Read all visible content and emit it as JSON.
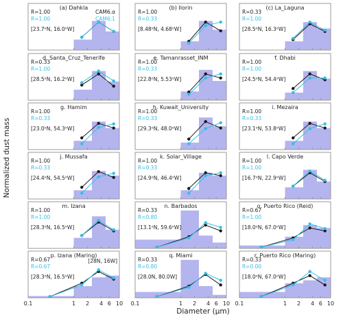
{
  "figure": {
    "ylabel": "Normalized dust mass",
    "xlabel": "Diameter (μm)",
    "x_ticks": [
      "0.1",
      "1",
      "2",
      "4",
      "6",
      "10"
    ],
    "legend": [
      {
        "name": "CAM6.α",
        "color": "#1a1a1a"
      },
      {
        "name": "CAM6.1",
        "color": "#33bfe6"
      }
    ]
  },
  "colors": {
    "bar": "#b4b4ee",
    "cam6_alpha": "#1a1a1a",
    "cam6_1": "#33bfe6",
    "axis": "#999999"
  },
  "chart_data": [
    {
      "type": "bar",
      "title": "(a) Dahkla",
      "r_alpha": "R=1.00",
      "r_61": "R=1.00",
      "location": "[23.7ᵒN, 16.0ᵒW]",
      "bin_edges": [
        0.1,
        1,
        2.5,
        5,
        10
      ],
      "bars": [
        0,
        0.18,
        0.5,
        0.32
      ],
      "alpha": [
        0.22,
        0.48,
        0.32
      ],
      "cam61": [
        0.22,
        0.48,
        0.32
      ],
      "x_pts": [
        1.5,
        3.5,
        7.5
      ],
      "ylim": [
        0,
        0.8
      ],
      "x_scale": "log",
      "xlim": [
        0.1,
        10
      ]
    },
    {
      "type": "bar",
      "title": "(b) Ilorin",
      "r_alpha": "R=1.00",
      "r_61": "R=0.33",
      "location": "[8.48ᵒN, 4.68ᵒW]",
      "bin_edges": [
        0.1,
        1,
        2.5,
        5,
        10
      ],
      "bars": [
        0,
        0.15,
        0.5,
        0.35
      ],
      "alpha": [
        0.15,
        0.48,
        0.33
      ],
      "cam61": [
        0.12,
        0.42,
        0.48
      ],
      "x_pts": [
        1.5,
        3.5,
        7.5
      ],
      "ylim": [
        0,
        0.8
      ],
      "x_scale": "log",
      "xlim": [
        0.1,
        10
      ]
    },
    {
      "type": "bar",
      "title": "(c) La_Laguna",
      "r_alpha": "R=0.33",
      "r_61": "R=1.00",
      "location": "[28.5ᵒN, 16.3ᵒW]",
      "bin_edges": [
        0.1,
        1,
        2.5,
        5,
        10
      ],
      "bars": [
        0,
        0.15,
        0.48,
        0.37
      ],
      "alpha": [
        0.18,
        0.45,
        0.32
      ],
      "cam61": [
        0.2,
        0.48,
        0.34
      ],
      "x_pts": [
        1.5,
        3.5,
        7.5
      ],
      "ylim": [
        0,
        0.8
      ],
      "x_scale": "log",
      "xlim": [
        0.1,
        10
      ]
    },
    {
      "type": "bar",
      "title": "d. Santa_Cruz_Tenerife",
      "r_alpha": "R=0.33",
      "r_61": "R=1.00",
      "location": "[28.5ᵒN, 16.2ᵒW]",
      "bin_edges": [
        0.1,
        1,
        2.5,
        5,
        10
      ],
      "bars": [
        0,
        0.18,
        0.5,
        0.32
      ],
      "alpha": [
        0.26,
        0.45,
        0.24
      ],
      "cam61": [
        0.3,
        0.5,
        0.33
      ],
      "x_pts": [
        1.5,
        3.5,
        7.5
      ],
      "ylim": [
        0,
        0.8
      ],
      "x_scale": "log",
      "xlim": [
        0.1,
        10
      ]
    },
    {
      "type": "bar",
      "title": "e. Tamanrasset_INM",
      "r_alpha": "R=1.00",
      "r_61": "R=0.33",
      "location": "[22.8ᵒN, 5.53ᵒW]",
      "bin_edges": [
        0.1,
        1,
        2.5,
        5,
        10
      ],
      "bars": [
        0,
        0.15,
        0.52,
        0.33
      ],
      "alpha": [
        0.14,
        0.45,
        0.38
      ],
      "cam61": [
        0.1,
        0.38,
        0.45
      ],
      "x_pts": [
        1.5,
        3.5,
        7.5
      ],
      "ylim": [
        0,
        0.8
      ],
      "x_scale": "log",
      "xlim": [
        0.1,
        10
      ]
    },
    {
      "type": "bar",
      "title": "f. Dhabi",
      "r_alpha": "R=1.00",
      "r_61": "R=1.00",
      "location": "[24.5ᵒN, 54.4ᵒW]",
      "bin_edges": [
        0.1,
        1,
        2.5,
        5,
        10
      ],
      "bars": [
        0,
        0.13,
        0.5,
        0.37
      ],
      "alpha": [
        0.2,
        0.45,
        0.35
      ],
      "cam61": [
        0.13,
        0.38,
        0.38
      ],
      "x_pts": [
        1.5,
        3.5,
        7.5
      ],
      "ylim": [
        0,
        0.8
      ],
      "x_scale": "log",
      "xlim": [
        0.1,
        10
      ]
    },
    {
      "type": "bar",
      "title": "g. Hamim",
      "r_alpha": "R=1.00",
      "r_61": "R=0.33",
      "location": "[23.0ᵒN, 54.3ᵒW]",
      "bin_edges": [
        0.1,
        1,
        2.5,
        5,
        10
      ],
      "bars": [
        0,
        0.15,
        0.48,
        0.37
      ],
      "alpha": [
        0.2,
        0.45,
        0.37
      ],
      "cam61": [
        0.1,
        0.38,
        0.44
      ],
      "x_pts": [
        1.5,
        3.5,
        7.5
      ],
      "ylim": [
        0,
        0.8
      ],
      "x_scale": "log",
      "xlim": [
        0.1,
        10
      ]
    },
    {
      "type": "bar",
      "title": "h. Kuwait_University",
      "r_alpha": "R=1.00",
      "r_61": "R=0.33",
      "location": "[29.3ᵒN, 48.0ᵒW]",
      "bin_edges": [
        0.1,
        1,
        2.5,
        5,
        10
      ],
      "bars": [
        0,
        0.12,
        0.55,
        0.4
      ],
      "alpha": [
        0.18,
        0.48,
        0.37
      ],
      "cam61": [
        0.1,
        0.36,
        0.46
      ],
      "x_pts": [
        1.5,
        3.5,
        7.5
      ],
      "ylim": [
        0,
        0.8
      ],
      "x_scale": "log",
      "xlim": [
        0.1,
        10
      ]
    },
    {
      "type": "bar",
      "title": "i. Mezaira",
      "r_alpha": "R=1.00",
      "r_61": "R=0.33",
      "location": "[23.1ᵒN, 53.8ᵒW]",
      "bin_edges": [
        0.1,
        1,
        2.5,
        5,
        10
      ],
      "bars": [
        0,
        0.15,
        0.48,
        0.37
      ],
      "alpha": [
        0.2,
        0.45,
        0.37
      ],
      "cam61": [
        0.1,
        0.36,
        0.44
      ],
      "x_pts": [
        1.5,
        3.5,
        7.5
      ],
      "ylim": [
        0,
        0.8
      ],
      "x_scale": "log",
      "xlim": [
        0.1,
        10
      ]
    },
    {
      "type": "bar",
      "title": "j. Mussafa",
      "r_alpha": "R=1.00",
      "r_61": "R=0.33",
      "location": "[24.4ᵒN, 54.5ᵒW]",
      "bin_edges": [
        0.1,
        1,
        2.5,
        5,
        10
      ],
      "bars": [
        0,
        0.15,
        0.48,
        0.4
      ],
      "alpha": [
        0.2,
        0.47,
        0.37
      ],
      "cam61": [
        0.1,
        0.38,
        0.44
      ],
      "x_pts": [
        1.5,
        3.5,
        7.5
      ],
      "ylim": [
        0,
        0.8
      ],
      "x_scale": "log",
      "xlim": [
        0.1,
        10
      ]
    },
    {
      "type": "bar",
      "title": "k. Solar_Village",
      "r_alpha": "R=1.00",
      "r_61": "R=0.33",
      "location": "[24.9ᵒN, 46.4ᵒW]",
      "bin_edges": [
        0.1,
        1,
        2.5,
        5,
        10
      ],
      "bars": [
        0,
        0.15,
        0.45,
        0.4
      ],
      "alpha": [
        0.18,
        0.45,
        0.4
      ],
      "cam61": [
        0.1,
        0.4,
        0.45
      ],
      "x_pts": [
        1.5,
        3.5,
        7.5
      ],
      "ylim": [
        0,
        0.8
      ],
      "x_scale": "log",
      "xlim": [
        0.1,
        10
      ]
    },
    {
      "type": "bar",
      "title": "l. Capo Verde",
      "r_alpha": "R=1.00",
      "r_61": "R=1.00",
      "location": "[16.7ᵒN, 22.9ᵒW]",
      "bin_edges": [
        0.1,
        1,
        2.5,
        5,
        10
      ],
      "bars": [
        0,
        0.2,
        0.5,
        0.3
      ],
      "alpha": [
        0.22,
        0.45,
        0.3
      ],
      "cam61": [
        0.22,
        0.48,
        0.32
      ],
      "x_pts": [
        1.5,
        3.5,
        7.5
      ],
      "ylim": [
        0,
        0.8
      ],
      "x_scale": "log",
      "xlim": [
        0.1,
        10
      ]
    },
    {
      "type": "bar",
      "title": "m. Izana",
      "r_alpha": "R=1.00",
      "r_61": "R=1.00",
      "location": "[28.3ᵒN, 16.5ᵒW]",
      "bin_edges": [
        0.1,
        1,
        2.5,
        5,
        10
      ],
      "bars": [
        0,
        0.18,
        0.55,
        0.32
      ],
      "alpha": [
        0.22,
        0.45,
        0.3
      ],
      "cam61": [
        0.22,
        0.48,
        0.32
      ],
      "x_pts": [
        1.5,
        3.5,
        7.5
      ],
      "ylim": [
        0,
        0.8
      ],
      "x_scale": "log",
      "xlim": [
        0.1,
        10
      ]
    },
    {
      "type": "bar",
      "title": "n. Barbados",
      "r_alpha": "R=0.33",
      "r_61": "R=0.80",
      "location": "[13.1ᵒN, 59.6ᵒW]",
      "bin_edges": [
        0.1,
        1,
        2.5,
        5,
        10
      ],
      "bars": [
        0.15,
        0.65,
        0.22,
        0.1
      ],
      "alpha": [
        0.02,
        0.2,
        0.4,
        0.3
      ],
      "cam61": [
        0.02,
        0.18,
        0.44,
        0.36
      ],
      "x_pts": [
        0.3,
        1.5,
        3.5,
        7.5
      ],
      "ylim": [
        0,
        0.8
      ],
      "x_scale": "log",
      "xlim": [
        0.1,
        10
      ]
    },
    {
      "type": "bar",
      "title": "o. Puerto Rico (Reid)",
      "r_alpha": "R=0.67",
      "r_61": "R=1.00",
      "location": "[18.0ᵒN, 67.0ᵒW]",
      "bin_edges": [
        0.1,
        1,
        2.5,
        5,
        10
      ],
      "bars": [
        0.05,
        0.2,
        0.4,
        0.35
      ],
      "alpha": [
        0.02,
        0.18,
        0.35,
        0.3
      ],
      "cam61": [
        0.02,
        0.15,
        0.42,
        0.34
      ],
      "x_pts": [
        0.3,
        1.5,
        3.5,
        7.5
      ],
      "ylim": [
        0,
        0.8
      ],
      "x_scale": "log",
      "xlim": [
        0.1,
        10
      ]
    },
    {
      "type": "bar",
      "title": "p. Izana (Maring)",
      "r_alpha": "R=0.67",
      "r_61": "R=0.67",
      "location": "[28.3ᵒN, 16.5ᵒW]",
      "extra_label": "[28N, 16W]",
      "bin_edges": [
        0.1,
        1,
        2.5,
        5,
        10
      ],
      "bars": [
        0.03,
        0.2,
        0.35,
        0.38
      ],
      "alpha": [
        0.02,
        0.25,
        0.45,
        0.32
      ],
      "cam61": [
        0.02,
        0.22,
        0.48,
        0.34
      ],
      "x_pts": [
        0.3,
        1.5,
        3.5,
        7.5
      ],
      "ylim": [
        0,
        0.8
      ],
      "x_scale": "log",
      "xlim": [
        0.1,
        10
      ]
    },
    {
      "type": "bar",
      "title": "q. Miami",
      "r_alpha": "R=0.33",
      "r_61": "R=0.80",
      "location": "[28.0N, 80.0W]",
      "bin_edges": [
        0.1,
        1,
        2.5,
        5,
        10
      ],
      "bars": [
        0.1,
        0.65,
        0.2,
        0.05
      ],
      "alpha": [
        0.02,
        0.2,
        0.4,
        0.22
      ],
      "cam61": [
        0.02,
        0.18,
        0.42,
        0.3
      ],
      "x_pts": [
        0.3,
        1.5,
        3.5,
        7.5
      ],
      "ylim": [
        0,
        0.8
      ],
      "x_scale": "log",
      "xlim": [
        0.1,
        10
      ]
    },
    {
      "type": "bar",
      "title": "r. Puerto Rico (Maring)",
      "r_alpha": "R=0.33",
      "r_61": "R=0.00",
      "location": "[18.0ᵒN, 67.0ᵒW]",
      "bin_edges": [
        0.1,
        1,
        2.5,
        5,
        10
      ],
      "bars": [
        0.1,
        0.25,
        0.3,
        0.35
      ],
      "alpha": [
        0.02,
        0.25,
        0.38,
        0.22
      ],
      "cam61": [
        0.02,
        0.22,
        0.45,
        0.3
      ],
      "x_pts": [
        0.3,
        1.5,
        3.5,
        7.5
      ],
      "ylim": [
        0,
        0.8
      ],
      "x_scale": "log",
      "xlim": [
        0.1,
        10
      ]
    }
  ]
}
